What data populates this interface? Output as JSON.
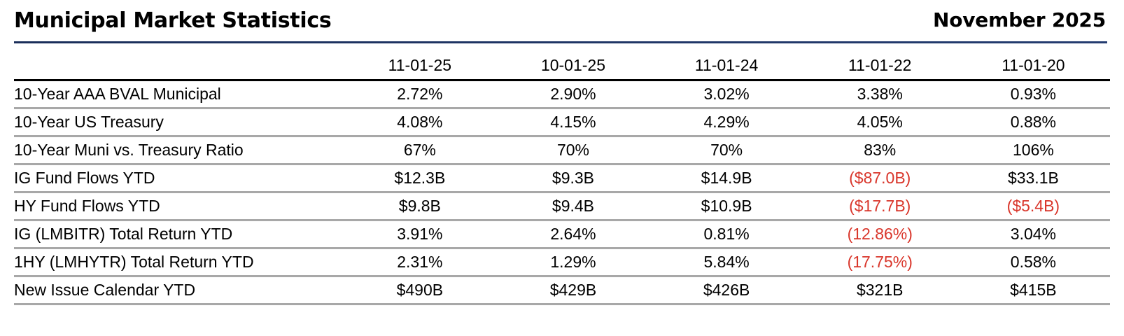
{
  "header": {
    "title": "Municipal Market Statistics",
    "date": "November 2025"
  },
  "table": {
    "columns": [
      "11-01-25",
      "10-01-25",
      "11-01-24",
      "11-01-22",
      "11-01-20"
    ],
    "rows": [
      {
        "label": "10-Year AAA BVAL Municipal",
        "values": [
          "2.72%",
          "2.90%",
          "3.02%",
          "3.38%",
          "0.93%"
        ],
        "negative": [
          false,
          false,
          false,
          false,
          false
        ]
      },
      {
        "label": "10-Year US Treasury",
        "values": [
          "4.08%",
          "4.15%",
          "4.29%",
          "4.05%",
          "0.88%"
        ],
        "negative": [
          false,
          false,
          false,
          false,
          false
        ]
      },
      {
        "label": "10-Year Muni vs. Treasury Ratio",
        "values": [
          "67%",
          "70%",
          "70%",
          "83%",
          "106%"
        ],
        "negative": [
          false,
          false,
          false,
          false,
          false
        ]
      },
      {
        "label": "IG Fund Flows YTD",
        "values": [
          "$12.3B",
          "$9.3B",
          "$14.9B",
          "($87.0B)",
          "$33.1B"
        ],
        "negative": [
          false,
          false,
          false,
          true,
          false
        ]
      },
      {
        "label": "HY Fund Flows YTD",
        "values": [
          "$9.8B",
          "$9.4B",
          "$10.9B",
          "($17.7B)",
          "($5.4B)"
        ],
        "negative": [
          false,
          false,
          false,
          true,
          true
        ]
      },
      {
        "label": "IG (LMBITR) Total Return YTD",
        "values": [
          "3.91%",
          "2.64%",
          "0.81%",
          "(12.86%)",
          "3.04%"
        ],
        "negative": [
          false,
          false,
          false,
          true,
          false
        ]
      },
      {
        "label": "1HY (LMHYTR) Total Return YTD",
        "values": [
          "2.31%",
          "1.29%",
          "5.84%",
          "(17.75%)",
          "0.58%"
        ],
        "negative": [
          false,
          false,
          false,
          true,
          false
        ]
      },
      {
        "label": "New Issue Calendar YTD",
        "values": [
          "$490B",
          "$429B",
          "$426B",
          "$321B",
          "$415B"
        ],
        "negative": [
          false,
          false,
          false,
          false,
          false
        ]
      }
    ]
  },
  "colors": {
    "title_rule": "#1a2e5a",
    "negative_value": "#d9362b",
    "row_divider": "#a8a8a8",
    "header_divider": "#000000"
  }
}
